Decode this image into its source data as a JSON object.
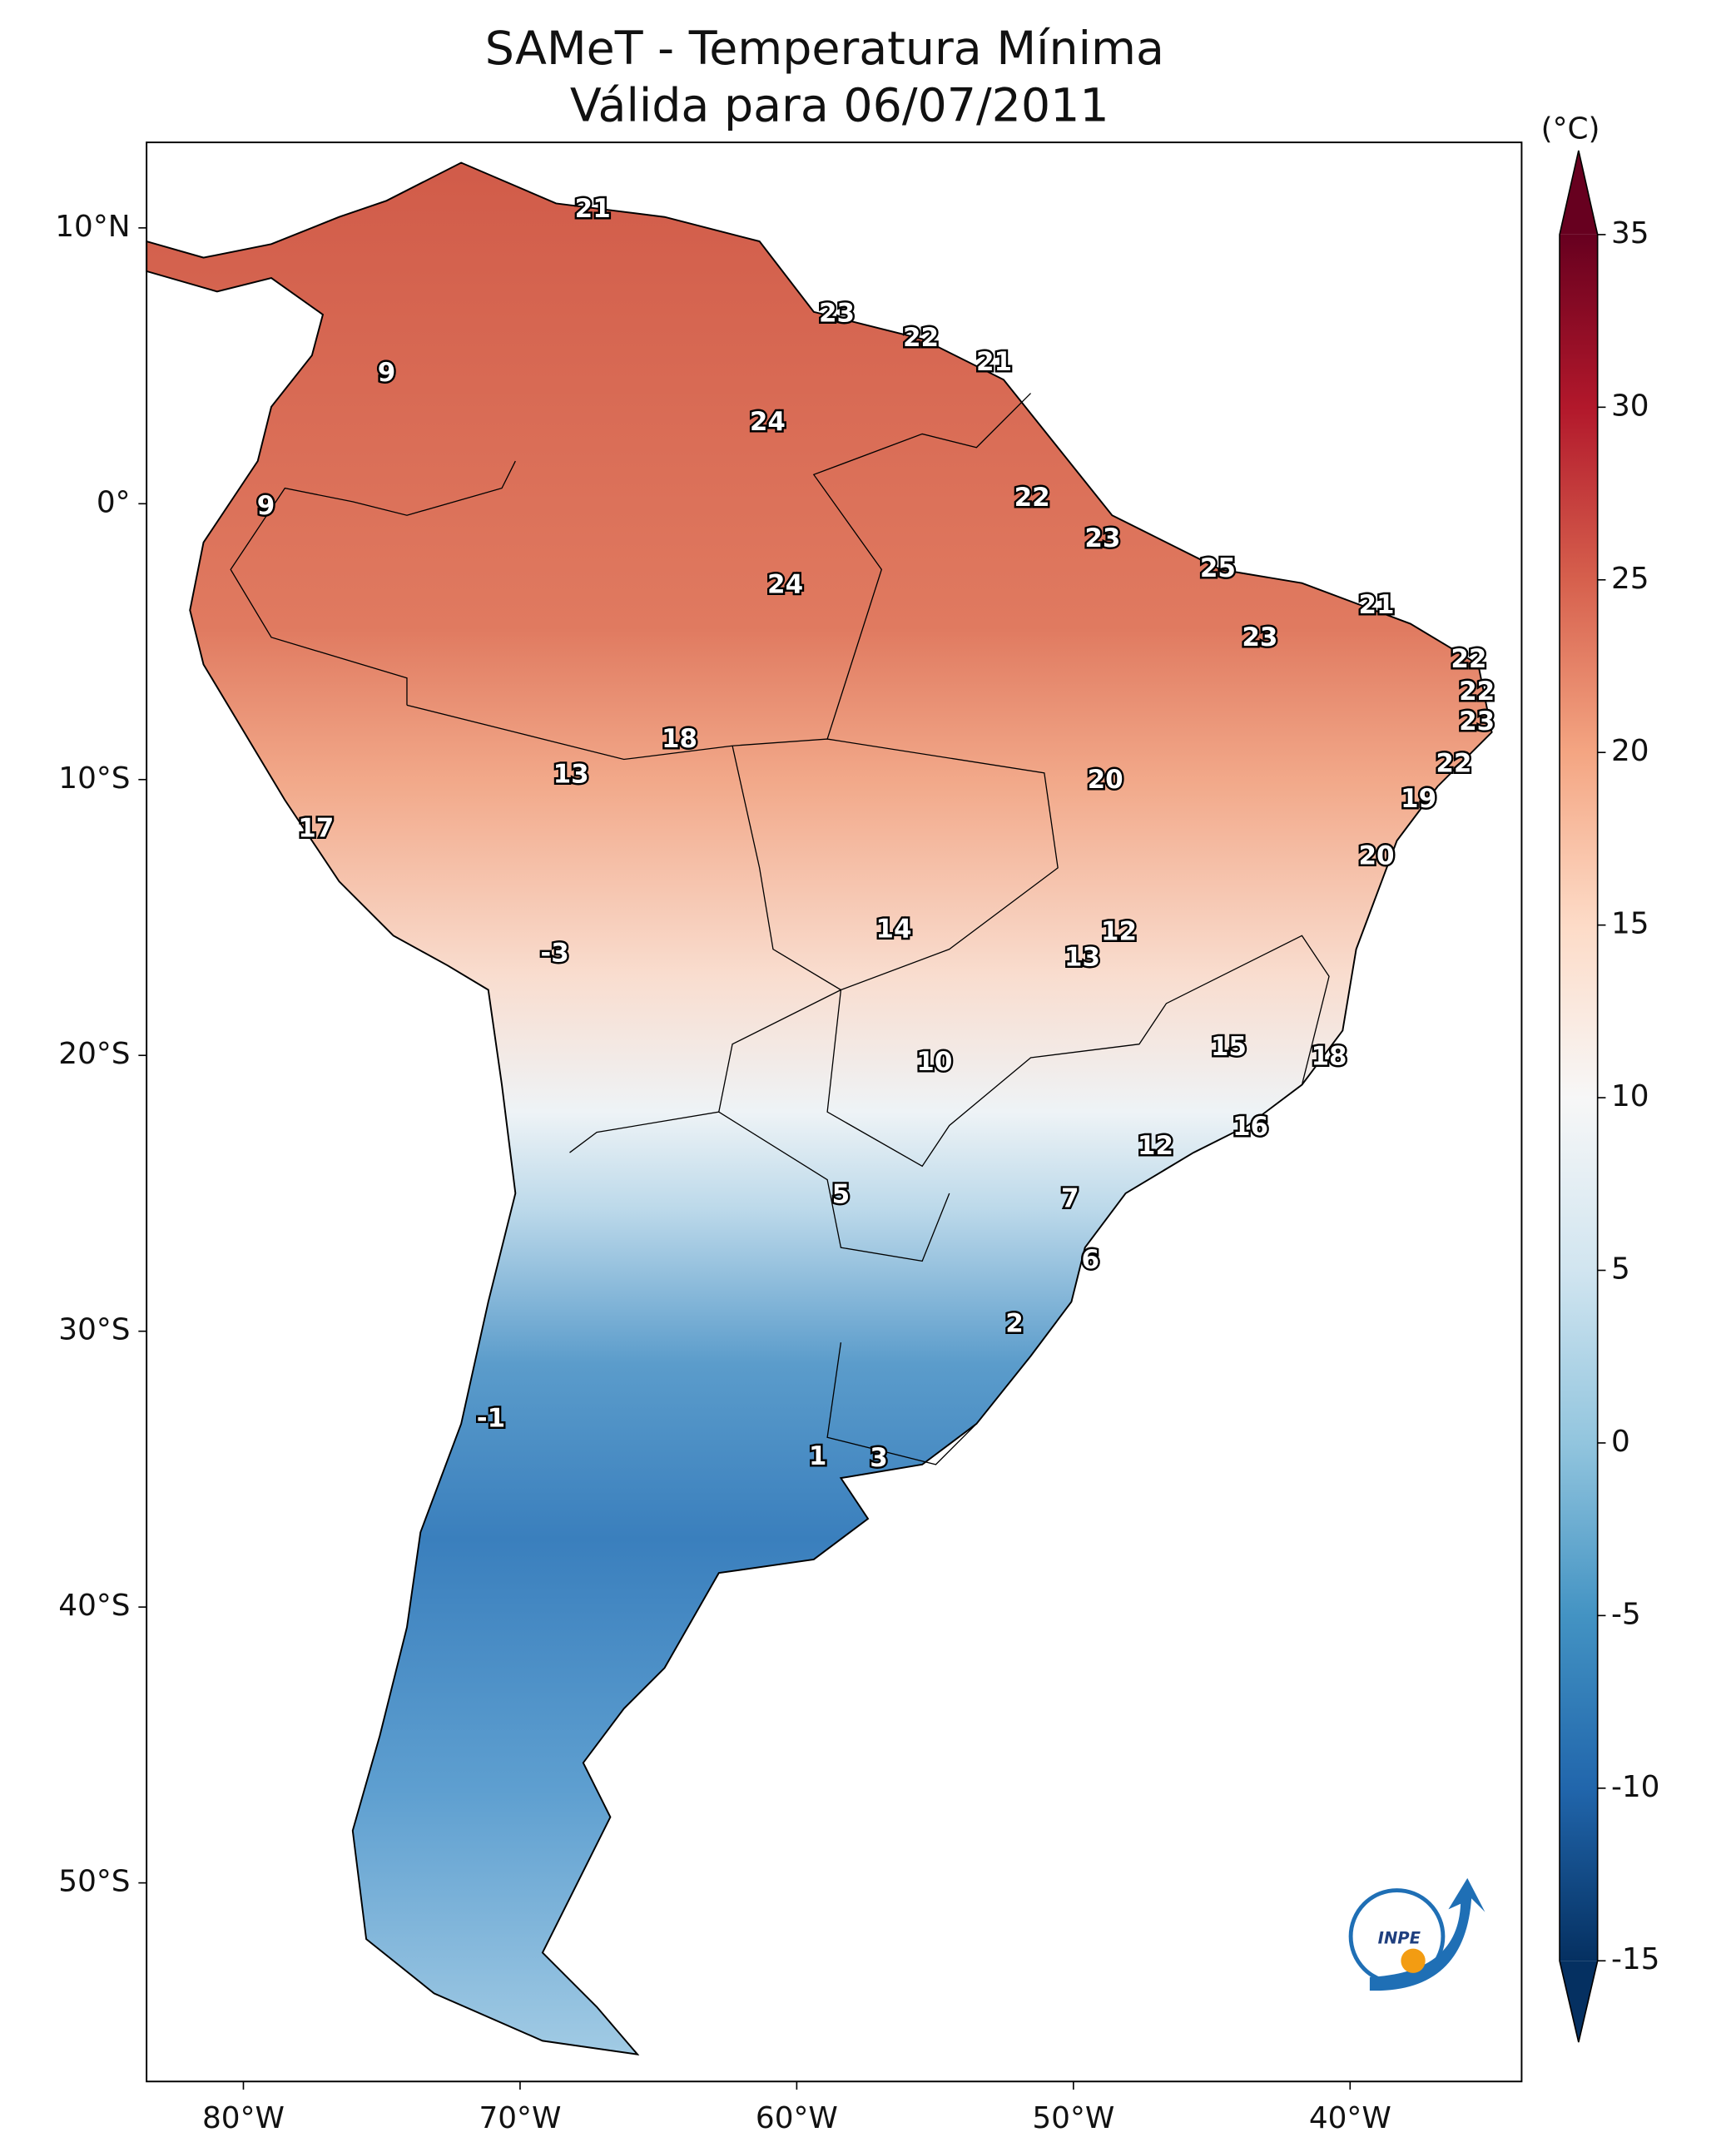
{
  "chart_data": {
    "type": "map",
    "title": "SAMeT - Temperatura Mínima",
    "subtitle": "Válida para 06/07/2011",
    "xlim": [
      -83.5,
      -33.8
    ],
    "xticks": [
      {
        "value": -80,
        "label": "80°W"
      },
      {
        "value": -70,
        "label": "70°W"
      },
      {
        "value": -60,
        "label": "60°W"
      },
      {
        "value": -50,
        "label": "50°W"
      },
      {
        "value": -40,
        "label": "40°W"
      }
    ],
    "ylim": [
      -57.2,
      13.1
    ],
    "yticks": [
      {
        "value": 10,
        "label": "10°N"
      },
      {
        "value": 0,
        "label": "0°"
      },
      {
        "value": -10,
        "label": "10°S"
      },
      {
        "value": -20,
        "label": "20°S"
      },
      {
        "value": -30,
        "label": "30°S"
      },
      {
        "value": -40,
        "label": "40°S"
      },
      {
        "value": -50,
        "label": "50°S"
      }
    ],
    "colorbar": {
      "label": "(°C)",
      "lim": [
        -15,
        35
      ],
      "ticks": [
        -15,
        -10,
        -5,
        0,
        5,
        10,
        15,
        20,
        25,
        30,
        35
      ]
    },
    "station_labels": [
      21,
      23,
      22,
      21,
      9,
      24,
      9,
      22,
      23,
      25,
      24,
      21,
      23,
      22,
      22,
      23,
      18,
      22,
      13,
      20,
      19,
      17,
      20,
      14,
      12,
      -3,
      13,
      15,
      10,
      18,
      16,
      12,
      5,
      7,
      6,
      2,
      -1,
      1,
      3
    ]
  },
  "logo": {
    "text": "INPE"
  }
}
